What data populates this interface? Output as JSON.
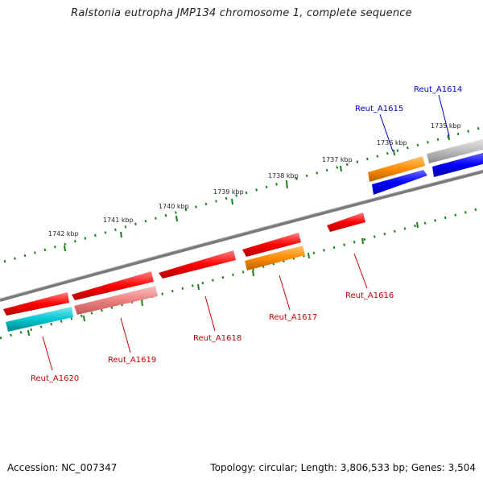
{
  "title": "Ralstonia eutropha JMP134 chromosome 1, complete sequence",
  "footer": {
    "accession": "Accession: NC_007347",
    "summary": "Topology: circular; Length: 3,806,533 bp; Genes: 3,504"
  },
  "scale_labels": [
    "1735 kbp",
    "1736 kbp",
    "1737 kbp",
    "1738 kbp",
    "1739 kbp",
    "1740 kbp",
    "1741 kbp",
    "1742 kbp"
  ],
  "gene_labels": [
    "Reut_A1614",
    "Reut_A1615",
    "Reut_A1616",
    "Reut_A1617",
    "Reut_A1618",
    "Reut_A1619",
    "Reut_A1620"
  ],
  "colors": {
    "red_gene": "#ff0000",
    "pink_gene": "#f08080",
    "orange_gene": "#ff8c00",
    "blue_gene": "#0000ff",
    "cyan_gene": "#00c8d2",
    "gray_gene": "#b4b4b4",
    "backbone": "#808080",
    "tick": "#1a7f1a",
    "label_forward": "#0000cc",
    "label_reverse": "#cc0000"
  }
}
